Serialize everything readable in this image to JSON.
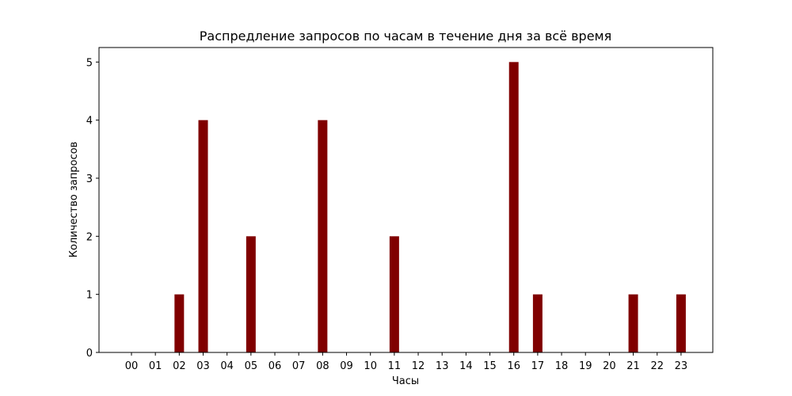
{
  "chart_data": {
    "type": "bar",
    "title": "Распредление запросов по часам в течение дня за всё время",
    "xlabel": "Часы",
    "ylabel": "Количество запросов",
    "categories": [
      "00",
      "01",
      "02",
      "03",
      "04",
      "05",
      "06",
      "07",
      "08",
      "09",
      "10",
      "11",
      "12",
      "13",
      "14",
      "15",
      "16",
      "17",
      "18",
      "19",
      "20",
      "21",
      "22",
      "23"
    ],
    "values": [
      0,
      0,
      1,
      4,
      0,
      2,
      0,
      0,
      4,
      0,
      0,
      2,
      0,
      0,
      0,
      0,
      5,
      1,
      0,
      0,
      0,
      1,
      0,
      1
    ],
    "ylim": [
      0,
      5.25
    ],
    "yticks": [
      0,
      1,
      2,
      3,
      4,
      5
    ],
    "grid": false,
    "bar_color": "#800000"
  }
}
